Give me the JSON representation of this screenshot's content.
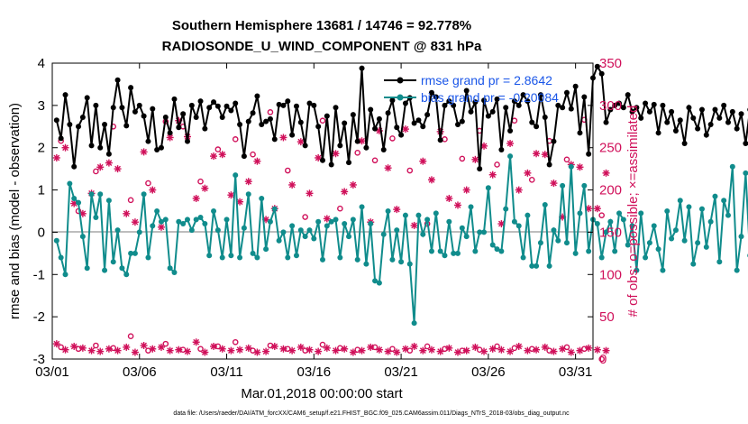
{
  "chart_data": {
    "type": "line",
    "title": "Southern Hemisphere 13681 / 14746 = 92.778%",
    "subtitle": "RADIOSONDE_U_WIND_COMPONENT @ 831 hPa",
    "xlabel": "Mar.01,2018 00:00:00 start",
    "ylabel": "rmse and bias (model - observation)",
    "y2label": "# of obs: o=possible; ×=assimilated",
    "footnote": "data file: /Users/raeder/DAI/ATM_forcXX/CAM6_setup/f.e21.FHIST_BGC.f09_025.CAM6assim.011/Diags_NTrS_2018-03/obs_diag_output.nc",
    "x_range": [
      0,
      31
    ],
    "ylim": [
      -3,
      4
    ],
    "y2lim": [
      0,
      350
    ],
    "x_tick_values": [
      0,
      5,
      10,
      15,
      20,
      25,
      30
    ],
    "x_tick_labels": [
      "03/01",
      "03/06",
      "03/11",
      "03/16",
      "03/21",
      "03/26",
      "03/31"
    ],
    "y_ticks": [
      -3,
      -2,
      -1,
      0,
      1,
      2,
      3,
      4
    ],
    "y2_ticks": [
      0,
      50,
      100,
      150,
      200,
      250,
      300,
      350
    ],
    "colors": {
      "rmse": "#000000",
      "bias": "#108c8c",
      "obs": "#d0105a",
      "legend_text": "#1a56e8",
      "zero_line": "#bdbdbd"
    },
    "legend": {
      "position": "top-right",
      "entries": [
        "rmse grand pr = 2.8642",
        "bias grand pr = -0.20084"
      ]
    },
    "series": [
      {
        "name": "rmse",
        "x_step": 0.25,
        "x_start": 0.25,
        "values": [
          2.65,
          2.22,
          3.25,
          2.55,
          1.55,
          2.5,
          2.72,
          3.18,
          2.05,
          3.0,
          2.0,
          2.55,
          1.85,
          2.95,
          3.6,
          2.95,
          2.52,
          3.42,
          2.85,
          3.0,
          2.75,
          2.15,
          2.92,
          1.95,
          2.0,
          2.72,
          2.35,
          3.15,
          2.48,
          2.8,
          2.15,
          3.0,
          2.72,
          3.1,
          2.45,
          2.95,
          3.08,
          2.98,
          2.72,
          2.98,
          2.88,
          3.05,
          2.55,
          1.8,
          2.62,
          2.82,
          3.22,
          2.55,
          2.62,
          2.68,
          2.2,
          3.02,
          3.0,
          3.1,
          2.3,
          2.98,
          2.6,
          2.05,
          3.05,
          3.0,
          2.5,
          1.7,
          2.75,
          1.6,
          2.95,
          2.05,
          2.58,
          1.65,
          2.78,
          2.15,
          3.88,
          2.0,
          2.9,
          2.45,
          2.68,
          1.95,
          2.82,
          3.12,
          2.48,
          2.3,
          3.05,
          3.18,
          2.58,
          2.65,
          2.5,
          2.78,
          3.3,
          3.2,
          2.18,
          3.0,
          3.1,
          3.0,
          2.55,
          2.62,
          3.35,
          2.85,
          3.08,
          1.5,
          3.12,
          2.75,
          2.85,
          3.15,
          1.95,
          2.95,
          2.4,
          3.1,
          3.0,
          3.25,
          3.1,
          2.6,
          2.5,
          3.25,
          2.72,
          1.6,
          2.15,
          3.0,
          2.95,
          3.3,
          2.92,
          3.45,
          2.35,
          3.2,
          1.85,
          3.65,
          3.92,
          3.75,
          2.6,
          2.9,
          3.0,
          3.05,
          2.95,
          3.25,
          2.85,
          2.95,
          2.7,
          3.05,
          2.85,
          3.02,
          2.35,
          3.0,
          2.6,
          2.85,
          2.4,
          2.65,
          2.1,
          2.95,
          2.7,
          2.45,
          2.9,
          2.3,
          2.55,
          2.9,
          2.7,
          3.0,
          2.6,
          2.85,
          2.45,
          2.8,
          2.1,
          2.9,
          2.2
        ]
      },
      {
        "name": "bias",
        "x_step": 0.25,
        "x_start": 0.25,
        "values": [
          -0.2,
          -0.6,
          -1.0,
          1.15,
          0.8,
          0.7,
          -0.1,
          -0.85,
          0.9,
          0.35,
          0.9,
          -0.9,
          0.75,
          -0.7,
          0.05,
          -0.85,
          -1.0,
          -0.5,
          -0.5,
          0.0,
          0.9,
          -0.6,
          0.15,
          0.5,
          0.25,
          0.3,
          -0.85,
          -0.95,
          0.25,
          0.2,
          0.3,
          0.05,
          0.3,
          0.35,
          0.2,
          -0.55,
          0.5,
          0.05,
          -0.6,
          0.3,
          -0.55,
          1.35,
          -0.6,
          0.1,
          0.9,
          -0.5,
          -0.6,
          0.8,
          -0.4,
          0.25,
          0.55,
          -0.2,
          0.0,
          -0.6,
          0.15,
          -0.55,
          0.05,
          -0.1,
          0.05,
          -0.15,
          0.25,
          -0.65,
          0.15,
          0.25,
          0.3,
          -0.6,
          0.2,
          -0.1,
          0.3,
          -0.65,
          0.6,
          -0.75,
          0.2,
          -1.15,
          -1.2,
          -0.05,
          0.5,
          -0.65,
          0.05,
          -0.7,
          0.4,
          -0.75,
          -2.15,
          0.4,
          -0.05,
          0.3,
          -0.45,
          0.45,
          -0.45,
          -0.55,
          0.25,
          -0.5,
          -0.5,
          0.1,
          -0.1,
          0.6,
          -0.45,
          0.0,
          0.0,
          1.05,
          -0.3,
          -0.4,
          -0.45,
          0.55,
          1.8,
          0.25,
          0.15,
          -0.6,
          0.4,
          -0.8,
          -0.8,
          -0.25,
          0.65,
          -0.8,
          0.05,
          -0.2,
          1.1,
          -0.25,
          1.55,
          -0.5,
          0.45,
          1.1,
          -0.45,
          0.3,
          0.2,
          -0.6,
          0.0,
          0.25,
          -0.45,
          0.45,
          0.3,
          -0.3,
          0.15,
          -0.9,
          0.45,
          -0.6,
          -0.25,
          0.15,
          -0.4,
          -0.9,
          0.5,
          -0.15,
          0.05,
          0.75,
          -0.2,
          0.6,
          -0.75,
          -0.25,
          0.55,
          -0.35,
          0.25,
          0.85,
          -0.7,
          0.75,
          0.4,
          1.55,
          -0.9,
          -0.1,
          1.4,
          -0.55,
          1.0,
          -1.3,
          -1.5
        ]
      },
      {
        "name": "obs_possible",
        "x_step": 1.0,
        "x_start": 0.5,
        "values": [
          258,
          175,
          222,
          275,
          188,
          208,
          281,
          275,
          210,
          248,
          260,
          242,
          292,
          223,
          168,
          282,
          178,
          244,
          235,
          261,
          223,
          160,
          260,
          237,
          270,
          230,
          282,
          212,
          258,
          236,
          283,
          170
        ]
      },
      {
        "name": "obs_assimilated",
        "x_step": 0.5,
        "x_start": 0.25,
        "values": [
          238,
          250,
          184,
          172,
          196,
          227,
          232,
          225,
          172,
          162,
          245,
          200,
          156,
          262,
          282,
          263,
          190,
          202,
          240,
          242,
          194,
          186,
          210,
          234,
          165,
          178,
          262,
          206,
          257,
          196,
          238,
          166,
          243,
          198,
          206,
          258,
          162,
          270,
          226,
          177,
          272,
          158,
          234,
          212,
          269,
          190,
          182,
          200,
          236,
          252,
          218,
          160,
          255,
          200,
          220,
          243,
          242,
          208,
          168,
          230,
          227,
          178,
          178,
          220
        ]
      },
      {
        "name": "obs_bottom_possible",
        "x_step": 1.0,
        "x_start": 0.5,
        "values": [
          14,
          12,
          16,
          13,
          27,
          10,
          18,
          11,
          12,
          15,
          20,
          10,
          16,
          12,
          10,
          17,
          13,
          11,
          14,
          12,
          10,
          15,
          12,
          10,
          11,
          15,
          13,
          12,
          10,
          14,
          12,
          0
        ]
      },
      {
        "name": "obs_bottom_assimilated",
        "x_step": 0.5,
        "x_start": 0.25,
        "values": [
          18,
          11,
          15,
          13,
          10,
          9,
          12,
          10,
          14,
          8,
          16,
          12,
          14,
          10,
          11,
          9,
          20,
          8,
          15,
          12,
          10,
          11,
          13,
          8,
          9,
          15,
          12,
          10,
          14,
          11,
          9,
          13,
          10,
          12,
          8,
          10,
          14,
          11,
          9,
          8,
          12,
          15,
          10,
          11,
          9,
          13,
          8,
          10,
          14,
          9,
          12,
          11,
          9,
          15,
          10,
          11,
          14,
          9,
          12,
          8,
          10,
          13,
          11,
          10
        ]
      }
    ]
  }
}
